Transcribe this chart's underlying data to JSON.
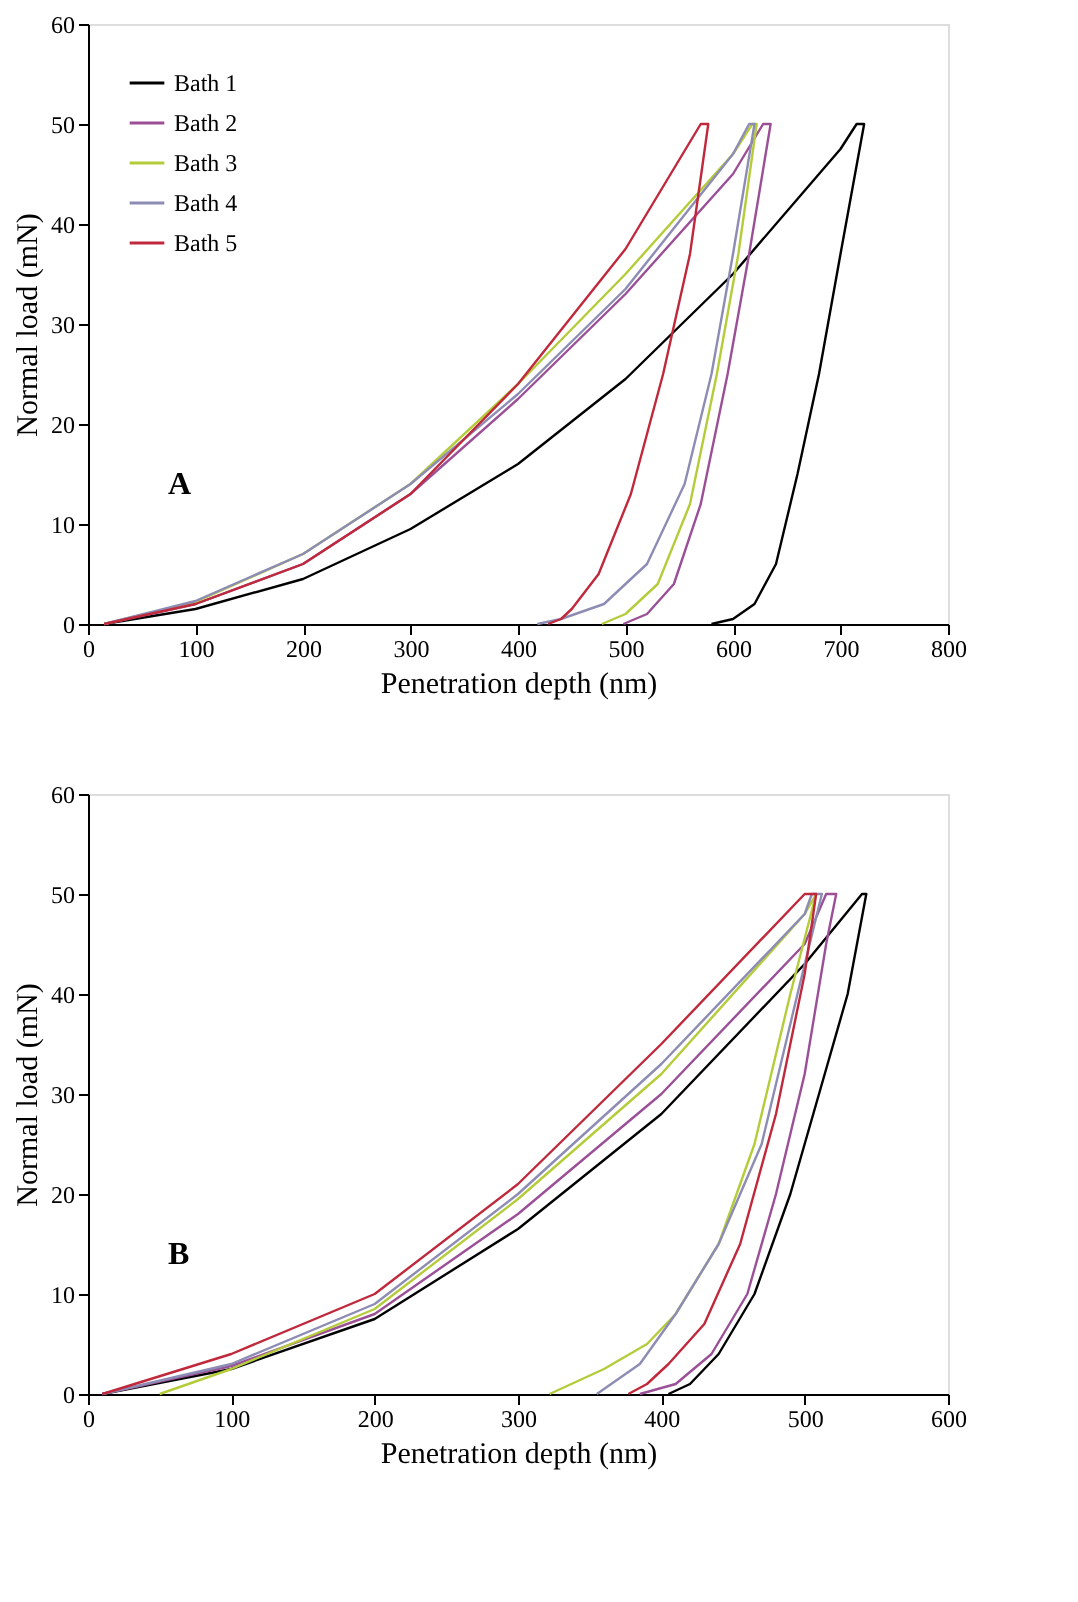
{
  "chart_data": [
    {
      "type": "line",
      "xlabel": "Penetration depth (nm)",
      "ylabel": "Normal load (mN)",
      "xlim": [
        0,
        800
      ],
      "xticks": [
        0,
        100,
        200,
        300,
        400,
        500,
        600,
        700,
        800
      ],
      "ylim": [
        0,
        60
      ],
      "yticks": [
        0,
        10,
        20,
        30,
        40,
        50,
        60
      ],
      "legend": "top left",
      "annotations": [
        "A"
      ],
      "series": [
        {
          "name": "Bath 1",
          "color": "#000000",
          "x": [
            15,
            100,
            200,
            300,
            400,
            500,
            600,
            700,
            715,
            722,
            700,
            680,
            660,
            640,
            620,
            600,
            580
          ],
          "values": [
            0,
            1.5,
            4.5,
            9.5,
            16,
            24.5,
            35,
            47.5,
            50,
            50,
            37,
            25,
            15,
            6,
            2,
            0.5,
            0
          ]
        },
        {
          "name": "Bath 2",
          "color": "#9b4f96",
          "x": [
            15,
            100,
            200,
            300,
            400,
            500,
            600,
            628,
            635,
            615,
            595,
            570,
            545,
            520,
            498
          ],
          "values": [
            0,
            2,
            6,
            13,
            22.5,
            33,
            45,
            50,
            50,
            37,
            25,
            12,
            4,
            1,
            0
          ]
        },
        {
          "name": "Bath 3",
          "color": "#b5cc3a",
          "x": [
            15,
            100,
            200,
            300,
            400,
            500,
            600,
            618,
            622,
            605,
            585,
            560,
            530,
            500,
            478
          ],
          "values": [
            0,
            2.2,
            7,
            14,
            24,
            35,
            47,
            50,
            50,
            37,
            25,
            12,
            4,
            1,
            0
          ]
        },
        {
          "name": "Bath 4",
          "color": "#8c8cb4",
          "x": [
            15,
            100,
            200,
            300,
            400,
            500,
            600,
            615,
            620,
            600,
            580,
            555,
            520,
            480,
            440,
            418
          ],
          "values": [
            0,
            2.3,
            7,
            14,
            23,
            33.5,
            47,
            50,
            50,
            37,
            25,
            14,
            6,
            2,
            0.5,
            0
          ]
        },
        {
          "name": "Bath 5",
          "color": "#c0283c",
          "x": [
            15,
            100,
            200,
            300,
            400,
            500,
            570,
            577,
            560,
            535,
            505,
            475,
            450,
            440,
            428
          ],
          "values": [
            0,
            2,
            6,
            13,
            24,
            37.5,
            50,
            50,
            37,
            25,
            13,
            5,
            1.5,
            0.5,
            0
          ]
        }
      ]
    },
    {
      "type": "line",
      "xlabel": "Penetration depth (nm)",
      "ylabel": "Normal load (mN)",
      "xlim": [
        0,
        600
      ],
      "xticks": [
        0,
        100,
        200,
        300,
        400,
        500,
        600
      ],
      "ylim": [
        0,
        60
      ],
      "yticks": [
        0,
        10,
        20,
        30,
        40,
        50,
        60
      ],
      "legend": "top left",
      "annotations": [
        "B"
      ],
      "series": [
        {
          "name": "Bath 1",
          "color": "#000000",
          "x": [
            10,
            100,
            200,
            300,
            400,
            500,
            540,
            543,
            530,
            510,
            490,
            465,
            440,
            420,
            405
          ],
          "values": [
            0,
            2.5,
            7.5,
            16.5,
            28,
            43,
            50,
            50,
            40,
            30,
            20,
            10,
            4,
            1,
            0
          ]
        },
        {
          "name": "Bath 2",
          "color": "#9b4f96",
          "x": [
            10,
            100,
            200,
            300,
            400,
            500,
            515,
            522,
            515,
            500,
            480,
            460,
            435,
            410,
            385
          ],
          "values": [
            0,
            2.8,
            8,
            18,
            30,
            45,
            50,
            50,
            45,
            32,
            20,
            10,
            4,
            1,
            0
          ]
        },
        {
          "name": "Bath 3",
          "color": "#b5cc3a",
          "x": [
            50,
            100,
            200,
            300,
            400,
            500,
            508,
            490,
            465,
            440,
            410,
            390,
            360,
            322
          ],
          "values": [
            0,
            2.5,
            8.5,
            19.5,
            32,
            48,
            50,
            40,
            25,
            15,
            8,
            5,
            2.5,
            0
          ]
        },
        {
          "name": "Bath 4",
          "color": "#8c8cb4",
          "x": [
            10,
            100,
            200,
            300,
            400,
            500,
            505,
            512,
            495,
            470,
            440,
            410,
            385,
            365,
            355
          ],
          "values": [
            0,
            3,
            9,
            20,
            33,
            48,
            50,
            50,
            40,
            25,
            15,
            8,
            3,
            1,
            0
          ]
        },
        {
          "name": "Bath 5",
          "color": "#c0283c",
          "x": [
            10,
            100,
            200,
            300,
            400,
            500,
            508,
            500,
            480,
            455,
            430,
            405,
            390,
            377
          ],
          "values": [
            0,
            4,
            10,
            21,
            35,
            50,
            50,
            42,
            28,
            15,
            7,
            3,
            1,
            0
          ]
        }
      ]
    }
  ]
}
